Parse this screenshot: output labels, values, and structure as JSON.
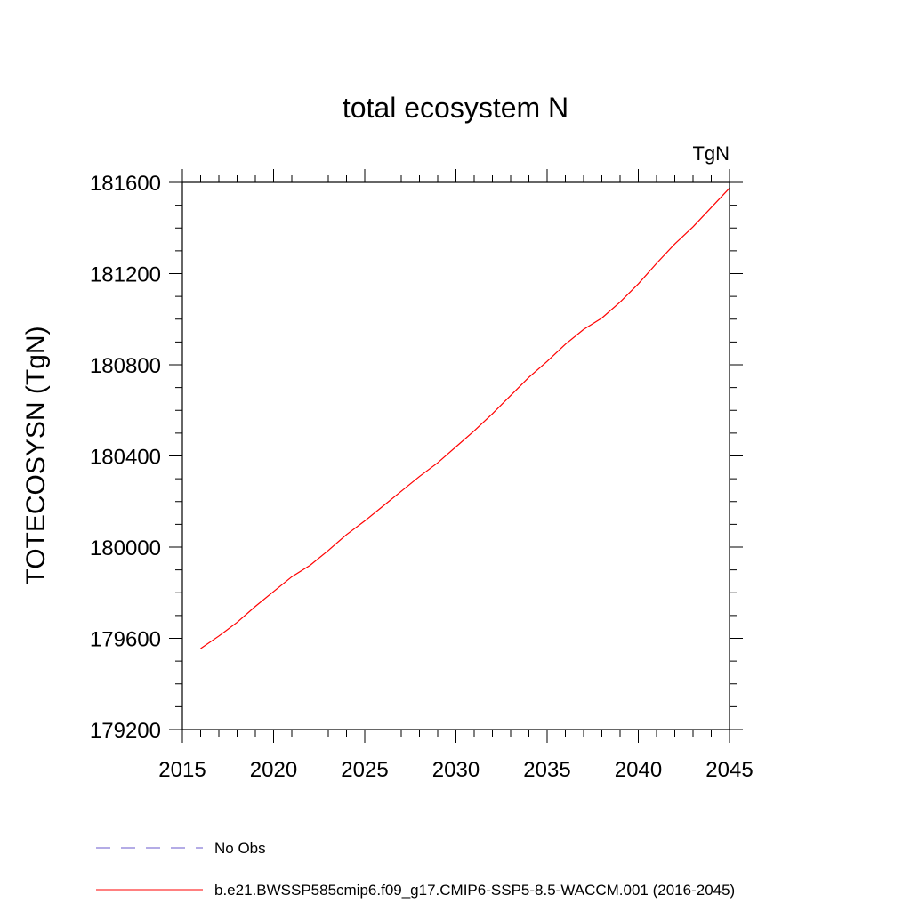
{
  "chart_data": {
    "type": "line",
    "title": "total ecosystem N",
    "units_label": "TgN",
    "xlabel": "",
    "ylabel": "TOTECOSYSN  (TgN)",
    "xlim": [
      2015,
      2045
    ],
    "ylim": [
      179200,
      181600
    ],
    "x_ticks": [
      "2015",
      "2020",
      "2025",
      "2030",
      "2035",
      "2040",
      "2045"
    ],
    "y_ticks": [
      "179200",
      "179600",
      "180000",
      "180400",
      "180800",
      "181200",
      "181600"
    ],
    "grid": false,
    "legend_position": "bottom",
    "series": [
      {
        "name": "No Obs",
        "color": "#6a5acd",
        "dash": "dashed",
        "x": [],
        "y": []
      },
      {
        "name": "b.e21.BWSSP585cmip6.f09_g17.CMIP6-SSP5-8.5-WACCM.001 (2016-2045)",
        "color": "#ff0000",
        "dash": "solid",
        "x": [
          2016,
          2017,
          2018,
          2019,
          2020,
          2021,
          2022,
          2023,
          2024,
          2025,
          2026,
          2027,
          2028,
          2029,
          2030,
          2031,
          2032,
          2033,
          2034,
          2035,
          2036,
          2037,
          2038,
          2039,
          2040,
          2041,
          2042,
          2043,
          2044,
          2045
        ],
        "y": [
          179555,
          179610,
          179670,
          179740,
          179805,
          179870,
          179920,
          179985,
          180055,
          180115,
          180180,
          180245,
          180310,
          180370,
          180440,
          180510,
          180585,
          180665,
          180745,
          180815,
          180890,
          180955,
          181005,
          181075,
          181155,
          181245,
          181330,
          181405,
          181490,
          181575
        ]
      }
    ]
  }
}
